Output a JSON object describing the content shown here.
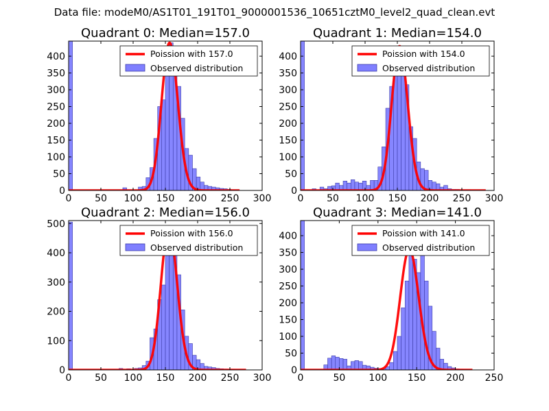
{
  "suptitle": "Data file: modeM0/AS1T01_191T01_9000001536_10651cztM0_level2_quad_clean.evt",
  "colors": {
    "hist_fill": "#7f7fff",
    "hist_edge": "#3c3ca8",
    "poisson_line": "#ff0000"
  },
  "chart_data": [
    {
      "type": "bar",
      "title": "Quadrant 0: Median=157.0",
      "median": 157.0,
      "xlim": [
        0,
        300
      ],
      "ylim": [
        0,
        445
      ],
      "xticks": [
        "0",
        "50",
        "100",
        "150",
        "200",
        "250",
        "300"
      ],
      "yticks": [
        "0",
        "50",
        "100",
        "150",
        "200",
        "250",
        "300",
        "350",
        "400"
      ],
      "legend": {
        "location": "upper right",
        "poisson_label": "Poission with 157.0",
        "hist_label": "Observed distribution"
      },
      "bin_width": 6,
      "bins": [
        [
          0,
          445
        ],
        [
          84,
          8
        ],
        [
          108,
          10
        ],
        [
          114,
          12
        ],
        [
          120,
          38
        ],
        [
          126,
          68
        ],
        [
          132,
          155
        ],
        [
          138,
          250
        ],
        [
          144,
          270
        ],
        [
          150,
          380
        ],
        [
          156,
          440
        ],
        [
          162,
          410
        ],
        [
          168,
          310
        ],
        [
          174,
          215
        ],
        [
          180,
          125
        ],
        [
          186,
          105
        ],
        [
          192,
          65
        ],
        [
          198,
          40
        ],
        [
          204,
          25
        ],
        [
          210,
          15
        ],
        [
          216,
          12
        ],
        [
          222,
          10
        ],
        [
          228,
          8
        ],
        [
          234,
          6
        ],
        [
          240,
          5
        ],
        [
          246,
          3
        ],
        [
          252,
          2
        ],
        [
          258,
          2
        ]
      ],
      "poisson_x": [
        0,
        265
      ]
    },
    {
      "type": "bar",
      "title": "Quadrant 1: Median=154.0",
      "median": 154.0,
      "xlim": [
        0,
        300
      ],
      "ylim": [
        0,
        445
      ],
      "xticks": [
        "0",
        "50",
        "100",
        "150",
        "200",
        "250",
        "300"
      ],
      "yticks": [
        "0",
        "50",
        "100",
        "150",
        "200",
        "250",
        "300",
        "350",
        "400"
      ],
      "legend": {
        "location": "upper right",
        "poisson_label": "Poission with 154.0",
        "hist_label": "Observed distribution"
      },
      "bin_width": 6,
      "bins": [
        [
          0,
          445
        ],
        [
          18,
          5
        ],
        [
          30,
          10
        ],
        [
          36,
          5
        ],
        [
          42,
          12
        ],
        [
          48,
          14
        ],
        [
          54,
          22
        ],
        [
          60,
          15
        ],
        [
          66,
          28
        ],
        [
          72,
          22
        ],
        [
          78,
          32
        ],
        [
          84,
          25
        ],
        [
          90,
          22
        ],
        [
          96,
          28
        ],
        [
          102,
          15
        ],
        [
          108,
          30
        ],
        [
          114,
          30
        ],
        [
          120,
          70
        ],
        [
          126,
          130
        ],
        [
          132,
          245
        ],
        [
          138,
          310
        ],
        [
          144,
          420
        ],
        [
          150,
          430
        ],
        [
          156,
          380
        ],
        [
          162,
          315
        ],
        [
          168,
          190
        ],
        [
          174,
          155
        ],
        [
          180,
          85
        ],
        [
          186,
          65
        ],
        [
          192,
          60
        ],
        [
          198,
          30
        ],
        [
          204,
          25
        ],
        [
          210,
          20
        ],
        [
          216,
          10
        ],
        [
          222,
          15
        ],
        [
          228,
          5
        ],
        [
          234,
          3
        ],
        [
          240,
          3
        ],
        [
          246,
          2
        ],
        [
          252,
          2
        ],
        [
          258,
          2
        ]
      ],
      "poisson_x": [
        0,
        287
      ]
    },
    {
      "type": "bar",
      "title": "Quadrant 2: Median=156.0",
      "median": 156.0,
      "xlim": [
        0,
        300
      ],
      "ylim": [
        0,
        510
      ],
      "xticks": [
        "0",
        "50",
        "100",
        "150",
        "200",
        "250",
        "300"
      ],
      "yticks": [
        "0",
        "100",
        "200",
        "300",
        "400",
        "500"
      ],
      "legend": {
        "location": "upper right",
        "poisson_label": "Poission with 156.0",
        "hist_label": "Observed distribution"
      },
      "bin_width": 6,
      "bins": [
        [
          0,
          505
        ],
        [
          78,
          5
        ],
        [
          90,
          4
        ],
        [
          102,
          5
        ],
        [
          108,
          7
        ],
        [
          114,
          15
        ],
        [
          120,
          30
        ],
        [
          126,
          110
        ],
        [
          132,
          140
        ],
        [
          138,
          240
        ],
        [
          144,
          290
        ],
        [
          150,
          445
        ],
        [
          156,
          490
        ],
        [
          162,
          400
        ],
        [
          168,
          325
        ],
        [
          174,
          205
        ],
        [
          180,
          115
        ],
        [
          186,
          90
        ],
        [
          192,
          50
        ],
        [
          198,
          35
        ],
        [
          204,
          22
        ],
        [
          210,
          12
        ],
        [
          216,
          10
        ],
        [
          222,
          8
        ],
        [
          228,
          5
        ],
        [
          234,
          4
        ],
        [
          240,
          3
        ],
        [
          246,
          2
        ],
        [
          252,
          2
        ],
        [
          258,
          1
        ],
        [
          264,
          1
        ]
      ],
      "poisson_x": [
        0,
        275
      ]
    },
    {
      "type": "bar",
      "title": "Quadrant 3: Median=141.0",
      "median": 141.0,
      "xlim": [
        0,
        250
      ],
      "ylim": [
        0,
        445
      ],
      "xticks": [
        "0",
        "50",
        "100",
        "150",
        "200",
        "250"
      ],
      "yticks": [
        "0",
        "50",
        "100",
        "150",
        "200",
        "250",
        "300",
        "350",
        "400"
      ],
      "legend": {
        "location": "upper right",
        "poisson_label": "Poission with 141.0",
        "hist_label": "Observed distribution"
      },
      "bin_width": 5,
      "bins": [
        [
          0,
          445
        ],
        [
          30,
          15
        ],
        [
          35,
          35
        ],
        [
          40,
          42
        ],
        [
          45,
          38
        ],
        [
          50,
          34
        ],
        [
          55,
          32
        ],
        [
          60,
          12
        ],
        [
          65,
          25
        ],
        [
          70,
          28
        ],
        [
          75,
          25
        ],
        [
          80,
          14
        ],
        [
          85,
          12
        ],
        [
          90,
          8
        ],
        [
          95,
          5
        ],
        [
          100,
          4
        ],
        [
          105,
          5
        ],
        [
          110,
          10
        ],
        [
          115,
          22
        ],
        [
          120,
          55
        ],
        [
          125,
          100
        ],
        [
          130,
          185
        ],
        [
          135,
          265
        ],
        [
          140,
          360
        ],
        [
          145,
          330
        ],
        [
          150,
          290
        ],
        [
          155,
          360
        ],
        [
          160,
          265
        ],
        [
          165,
          190
        ],
        [
          170,
          115
        ],
        [
          175,
          65
        ],
        [
          180,
          32
        ],
        [
          185,
          20
        ],
        [
          190,
          10
        ],
        [
          195,
          6
        ],
        [
          200,
          3
        ],
        [
          205,
          2
        ],
        [
          210,
          1
        ]
      ],
      "poisson_x": [
        0,
        222
      ]
    }
  ]
}
